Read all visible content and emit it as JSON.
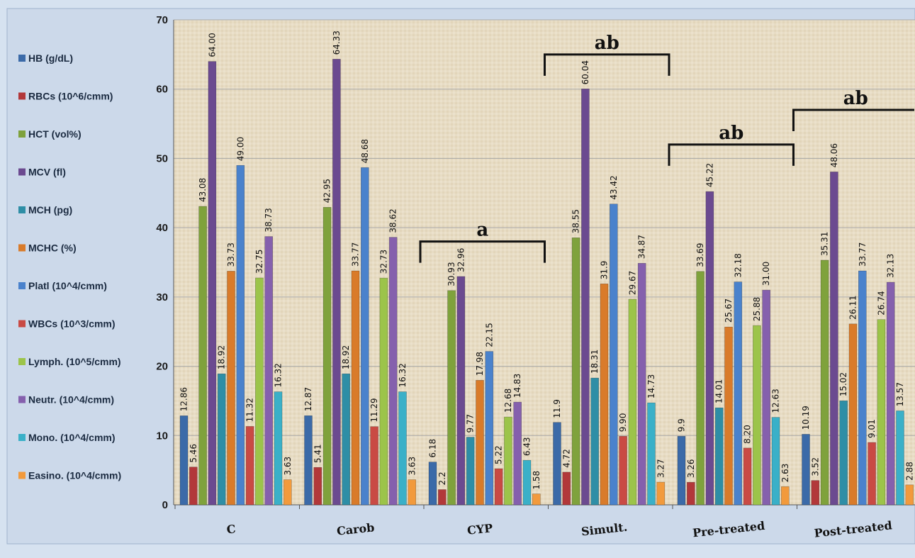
{
  "chart_data": {
    "type": "bar",
    "ylim": [
      0,
      70
    ],
    "yticks": [
      0,
      10,
      20,
      30,
      40,
      50,
      60,
      70
    ],
    "grid": true,
    "legend_position": "left",
    "categories": [
      "C",
      "Carob",
      "CYP",
      "Simult.",
      "Pre-treated",
      "Post-treated"
    ],
    "series": [
      {
        "name": "HB (g/dL)",
        "color": "#3b6aa8",
        "values": [
          12.86,
          12.87,
          6.18,
          11.9,
          9.9,
          10.19
        ],
        "labels": [
          "12.86",
          "12.87",
          "6.18",
          "11.9",
          "9.9",
          "10.19"
        ]
      },
      {
        "name": "RBCs (10^6/cmm)",
        "color": "#b2383a",
        "values": [
          5.46,
          5.41,
          2.2,
          4.72,
          3.26,
          3.52
        ],
        "labels": [
          "5.46",
          "5.41",
          "2.2",
          "4.72",
          "3.26",
          "3.52"
        ]
      },
      {
        "name": "HCT (vol%)",
        "color": "#7fa23c",
        "values": [
          43.08,
          42.95,
          30.93,
          38.55,
          33.69,
          35.31
        ],
        "labels": [
          "43.08",
          "42.95",
          "30.93",
          "38.55",
          "33.69",
          "35.31"
        ]
      },
      {
        "name": "MCV (fl)",
        "color": "#6b4a90",
        "values": [
          64.0,
          64.33,
          32.96,
          60.04,
          45.22,
          48.06
        ],
        "labels": [
          "64.00",
          "64.33",
          "32.96",
          "60.04",
          "45.22",
          "48.06"
        ]
      },
      {
        "name": "MCH (pg)",
        "color": "#2e8ea6",
        "values": [
          18.92,
          18.92,
          9.77,
          18.31,
          14.01,
          15.02
        ],
        "labels": [
          "18.92",
          "18.92",
          "9.77",
          "18.31",
          "14.01",
          "15.02"
        ]
      },
      {
        "name": "MCHC (%)",
        "color": "#d97b2a",
        "values": [
          33.73,
          33.77,
          17.98,
          31.9,
          25.67,
          26.11
        ],
        "labels": [
          "33.73",
          "33.77",
          "17.98",
          "31.9",
          "25.67",
          "26.11"
        ]
      },
      {
        "name": "Platl (10^4/cmm)",
        "color": "#4a82cc",
        "values": [
          49.0,
          48.68,
          22.15,
          43.42,
          32.18,
          33.77
        ],
        "labels": [
          "49.00",
          "48.68",
          "22.15",
          "43.42",
          "32.18",
          "33.77"
        ]
      },
      {
        "name": "WBCs (10^3/cmm)",
        "color": "#c94a44",
        "values": [
          11.32,
          11.29,
          5.22,
          9.9,
          8.2,
          9.01
        ],
        "labels": [
          "11.32",
          "11.29",
          "5.22",
          "9.90",
          "8.20",
          "9.01"
        ]
      },
      {
        "name": "Lymph. (10^5/cmm)",
        "color": "#9cc44a",
        "values": [
          32.75,
          32.73,
          12.68,
          29.67,
          25.88,
          26.74
        ],
        "labels": [
          "32.75",
          "32.73",
          "12.68",
          "29.67",
          "25.88",
          "26.74"
        ]
      },
      {
        "name": "Neutr. (10^4/cmm)",
        "color": "#8560ad",
        "values": [
          38.73,
          38.62,
          14.83,
          34.87,
          31.0,
          32.13
        ],
        "labels": [
          "38.73",
          "38.62",
          "14.83",
          "34.87",
          "31.00",
          "32.13"
        ]
      },
      {
        "name": "Mono. (10^4/cmm)",
        "color": "#3ab0c8",
        "values": [
          16.32,
          16.32,
          6.43,
          14.73,
          12.63,
          13.57
        ],
        "labels": [
          "16.32",
          "16.32",
          "6.43",
          "14.73",
          "12.63",
          "13.57"
        ]
      },
      {
        "name": "Easino. (10^4/cmm)",
        "color": "#f29a3c",
        "values": [
          3.63,
          3.63,
          1.58,
          3.27,
          2.63,
          2.88
        ],
        "labels": [
          "3.63",
          "3.63",
          "1.58",
          "3.27",
          "2.63",
          "2.88"
        ]
      }
    ],
    "annotations": [
      {
        "text": "a",
        "category": "CYP",
        "y": 38
      },
      {
        "text": "ab",
        "category": "Simult.",
        "y": 65
      },
      {
        "text": "ab",
        "category": "Pre-treated",
        "y": 52
      },
      {
        "text": "ab",
        "category": "Post-treated",
        "y": 57
      }
    ]
  }
}
